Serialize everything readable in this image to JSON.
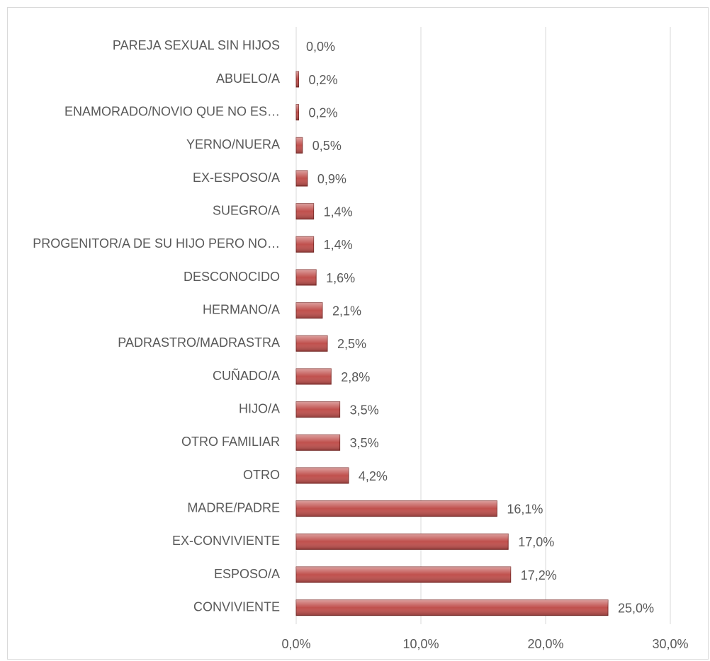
{
  "chart_data": {
    "type": "bar",
    "orientation": "horizontal",
    "categories": [
      "PAREJA SEXUAL SIN HIJOS",
      "ABUELO/A",
      "ENAMORADO/NOVIO QUE NO ES…",
      "YERNO/NUERA",
      "EX-ESPOSO/A",
      "SUEGRO/A",
      "PROGENITOR/A DE SU HIJO PERO NO…",
      "DESCONOCIDO",
      "HERMANO/A",
      "PADRASTRO/MADRASTRA",
      "CUÑADO/A",
      "HIJO/A",
      "OTRO FAMILIAR",
      "OTRO",
      "MADRE/PADRE",
      "EX-CONVIVIENTE",
      "ESPOSO/A",
      "CONVIVIENTE"
    ],
    "values": [
      0,
      0.2,
      0.2,
      0.5,
      0.9,
      1.4,
      1.4,
      1.6,
      2.1,
      2.5,
      2.8,
      3.5,
      3.5,
      4.2,
      16.1,
      17.0,
      17.2,
      25.0
    ],
    "value_labels": [
      "0,0%",
      "0,2%",
      "0,2%",
      "0,5%",
      "0,9%",
      "1,4%",
      "1,4%",
      "1,6%",
      "2,1%",
      "2,5%",
      "2,8%",
      "3,5%",
      "3,5%",
      "4,2%",
      "16,1%",
      "17,0%",
      "17,2%",
      "25,0%"
    ],
    "color": "#c0504d",
    "xlim": [
      0,
      30
    ],
    "xticks": [
      {
        "value": 0,
        "label": "0,0%"
      },
      {
        "value": 10,
        "label": "10,0%"
      },
      {
        "value": 20,
        "label": "20,0%"
      },
      {
        "value": 30,
        "label": "30,0%"
      }
    ],
    "grid": true
  }
}
